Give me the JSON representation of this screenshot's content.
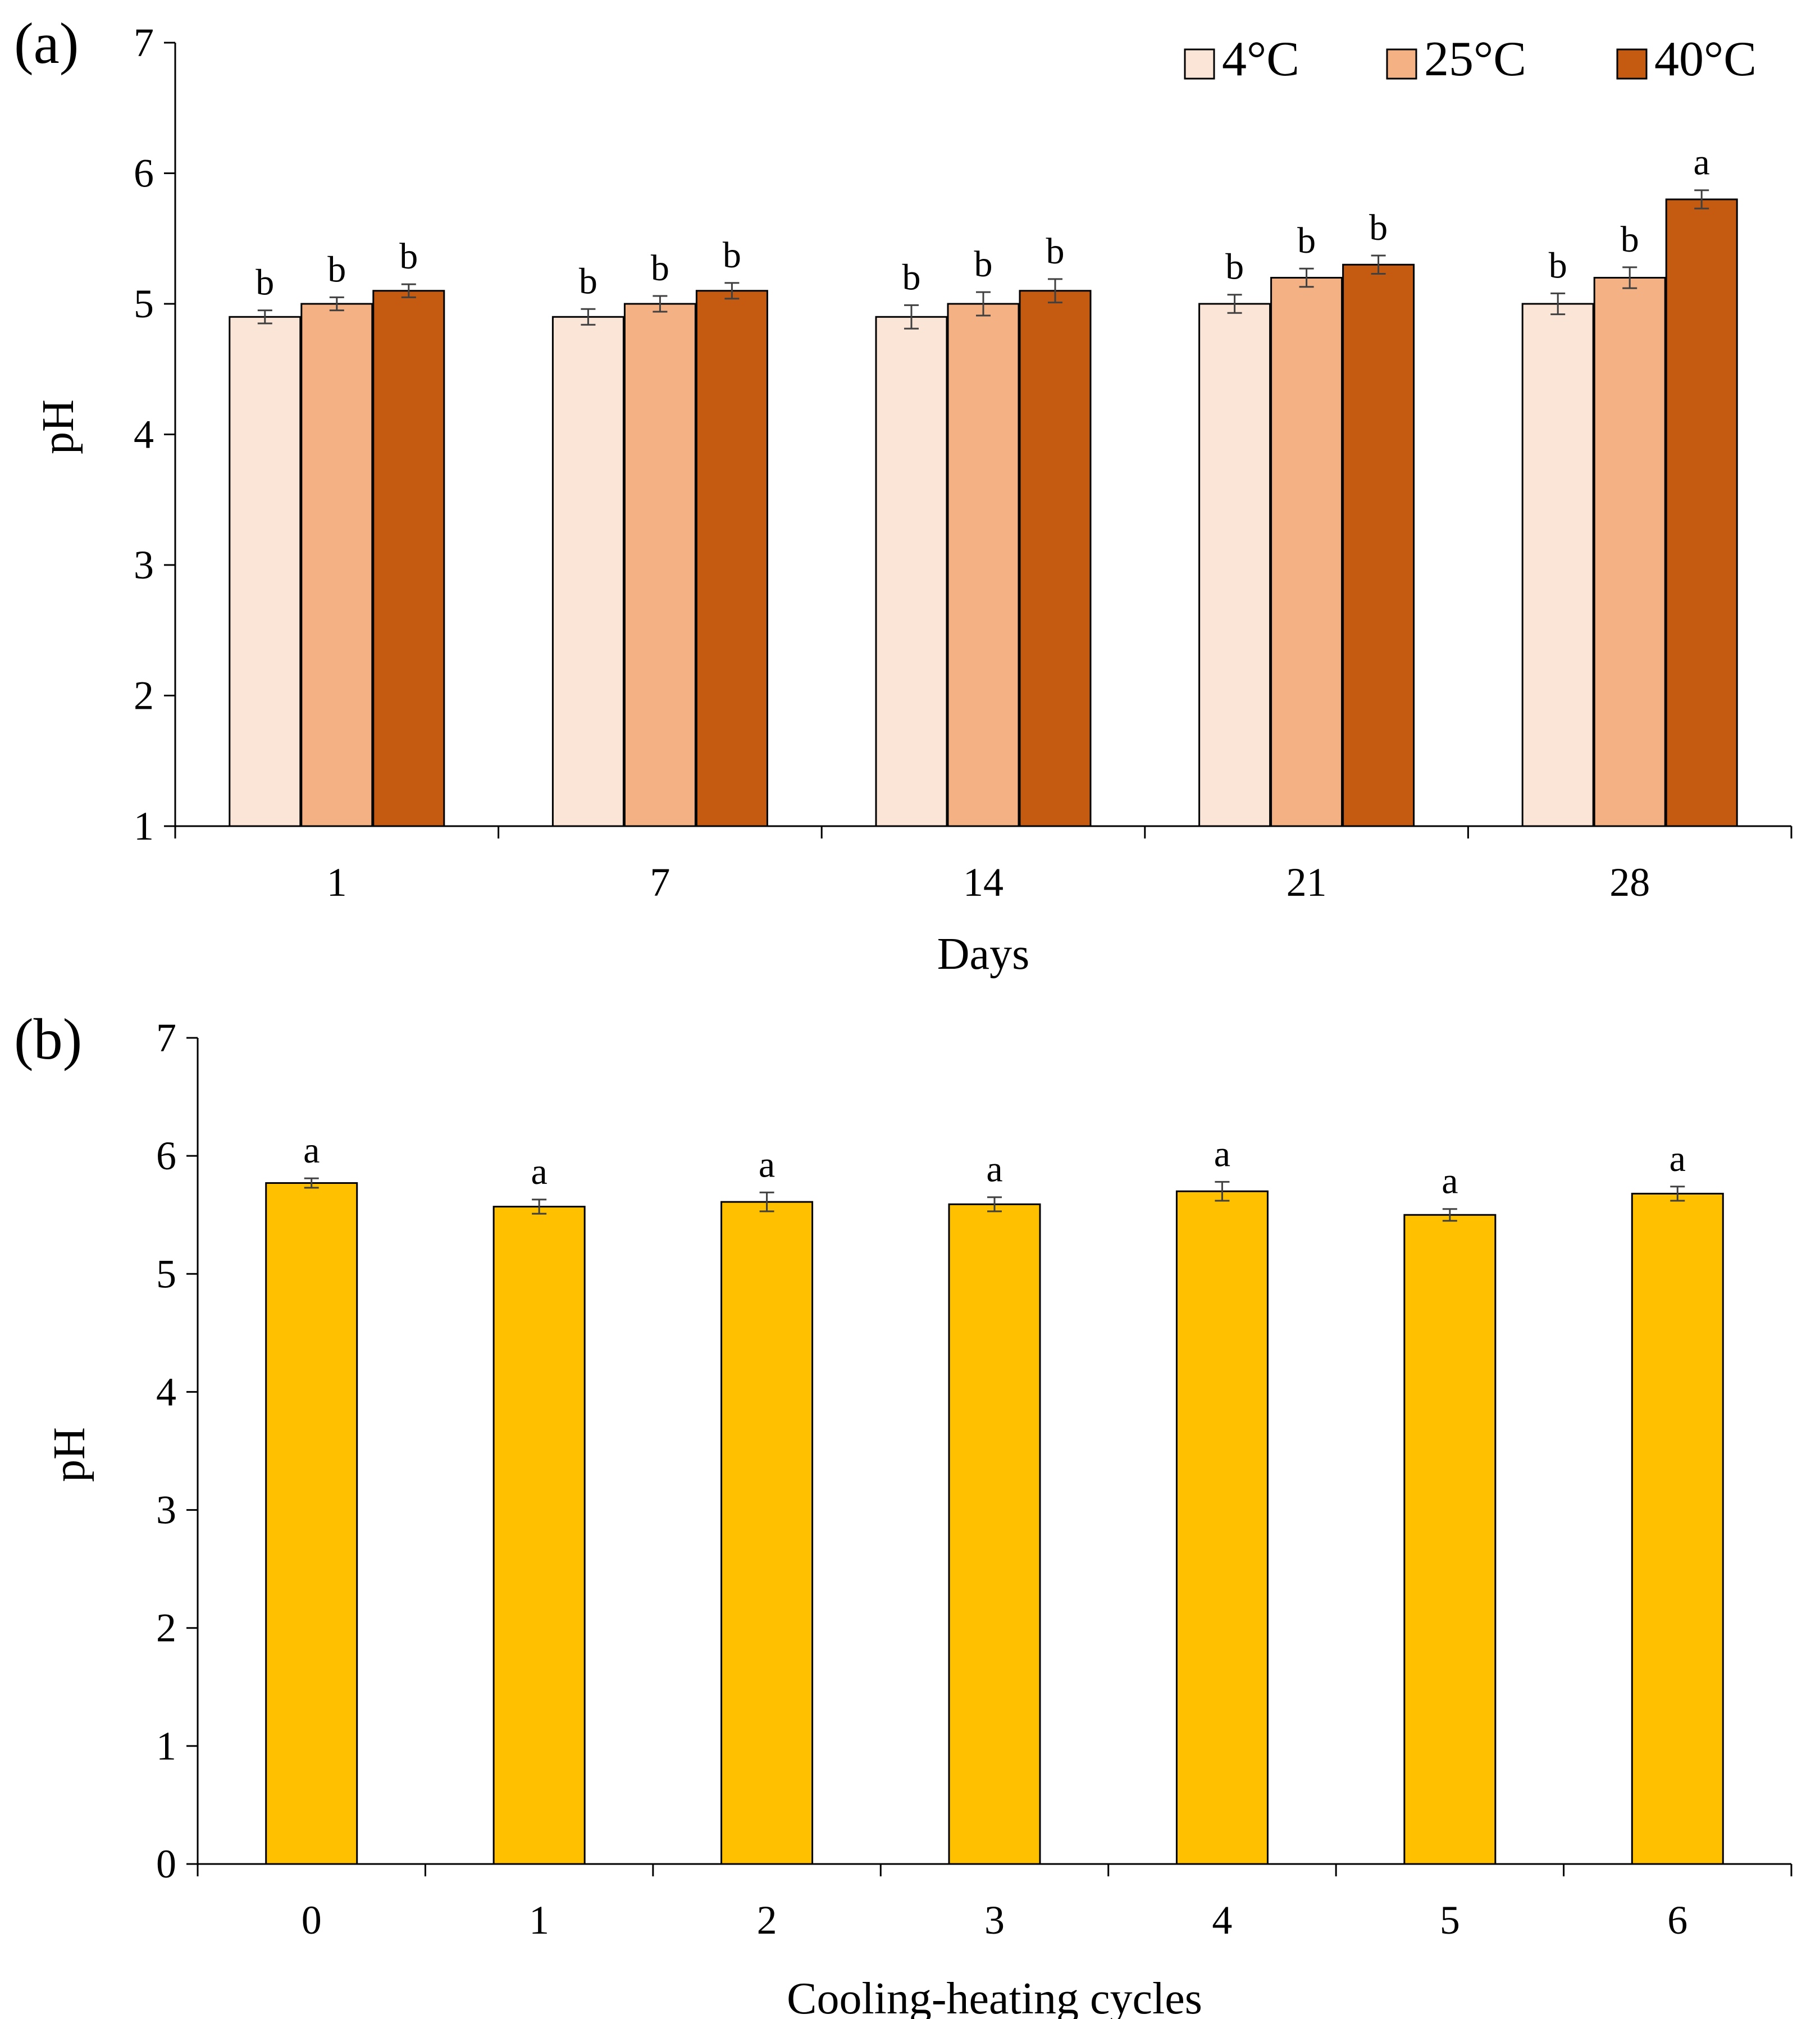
{
  "chart_data": [
    {
      "panel": "(a)",
      "type": "bar",
      "categories": [
        "1",
        "7",
        "14",
        "21",
        "28"
      ],
      "xlabel": "Days",
      "ylabel": "pH",
      "ylim": [
        1,
        7
      ],
      "yticks": [
        1,
        2,
        3,
        4,
        5,
        6,
        7
      ],
      "legend_position": "top-right",
      "series": [
        {
          "name": "4°C",
          "color": "#FBE5D6",
          "values": [
            4.9,
            4.9,
            4.9,
            5.0,
            5.0
          ],
          "errors": [
            0.05,
            0.06,
            0.09,
            0.07,
            0.08
          ],
          "letters": [
            "b",
            "b",
            "b",
            "b",
            "b"
          ]
        },
        {
          "name": "25°C",
          "color": "#F4B183",
          "values": [
            5.0,
            5.0,
            5.0,
            5.2,
            5.2
          ],
          "errors": [
            0.05,
            0.06,
            0.09,
            0.07,
            0.08
          ],
          "letters": [
            "b",
            "b",
            "b",
            "b",
            "b"
          ]
        },
        {
          "name": "40°C",
          "color": "#C55A11",
          "values": [
            5.1,
            5.1,
            5.1,
            5.3,
            5.8
          ],
          "errors": [
            0.05,
            0.06,
            0.09,
            0.07,
            0.07
          ],
          "letters": [
            "b",
            "b",
            "b",
            "b",
            "a"
          ]
        }
      ]
    },
    {
      "panel": "(b)",
      "type": "bar",
      "categories": [
        "0",
        "1",
        "2",
        "3",
        "4",
        "5",
        "6"
      ],
      "xlabel": "Cooling-heating  cycles",
      "ylabel": "pH",
      "ylim": [
        0,
        7
      ],
      "yticks": [
        0,
        1,
        2,
        3,
        4,
        5,
        6,
        7
      ],
      "series": [
        {
          "name": "pH",
          "color": "#FFC000",
          "values": [
            5.77,
            5.57,
            5.61,
            5.59,
            5.7,
            5.5,
            5.68
          ],
          "errors": [
            0.04,
            0.06,
            0.08,
            0.06,
            0.08,
            0.05,
            0.06
          ],
          "letters": [
            "a",
            "a",
            "a",
            "a",
            "a",
            "a",
            "a"
          ]
        }
      ]
    }
  ]
}
